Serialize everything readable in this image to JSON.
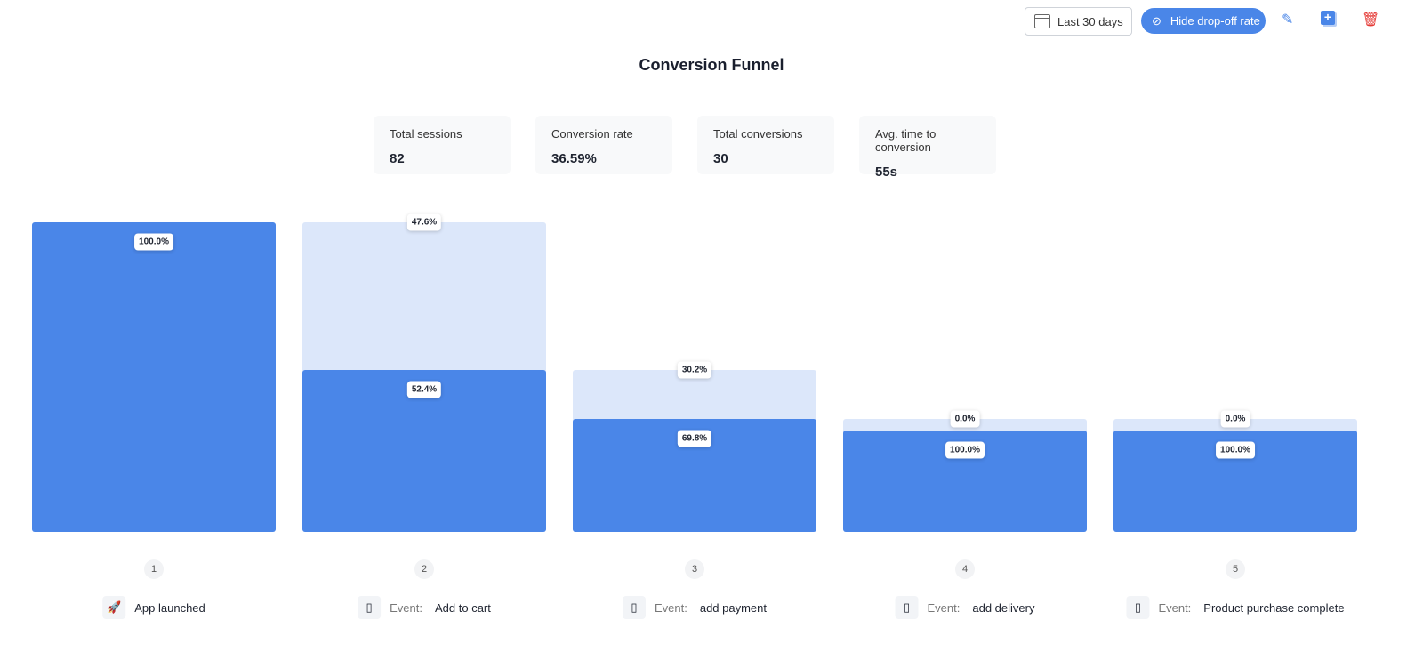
{
  "toolbar": {
    "date_range": "Last 30 days",
    "hide_dropoff": "Hide drop-off rate"
  },
  "title": "Conversion Funnel",
  "stats": [
    {
      "label": "Total sessions",
      "value": "82"
    },
    {
      "label": "Conversion rate",
      "value": "36.59%"
    },
    {
      "label": "Total conversions",
      "value": "30"
    },
    {
      "label": "Avg. time to conversion",
      "value": "55s"
    }
  ],
  "colors": {
    "conversion": "#4a86e8",
    "dropoff": "#dce7fa",
    "accent": "#4a86e8",
    "delete": "#e53935"
  },
  "chart_data": {
    "type": "bar",
    "categories": [
      "1",
      "2",
      "3",
      "4",
      "5"
    ],
    "steps": [
      {
        "number": "1",
        "prefix": "",
        "name": "App launched",
        "icon": "rocket-icon",
        "conversion_pct": "100.0%",
        "dropoff_pct": ""
      },
      {
        "number": "2",
        "prefix": "Event:",
        "name": "Add to cart",
        "icon": "phone-icon",
        "conversion_pct": "52.4%",
        "dropoff_pct": "47.6%"
      },
      {
        "number": "3",
        "prefix": "Event:",
        "name": "add payment",
        "icon": "phone-icon",
        "conversion_pct": "69.8%",
        "dropoff_pct": "30.2%"
      },
      {
        "number": "4",
        "prefix": "Event:",
        "name": "add delivery",
        "icon": "phone-icon",
        "conversion_pct": "100.0%",
        "dropoff_pct": "0.0%"
      },
      {
        "number": "5",
        "prefix": "Event:",
        "name": "Product purchase complete",
        "icon": "phone-icon",
        "conversion_pct": "100.0%",
        "dropoff_pct": "0.0%"
      }
    ],
    "sessions": [
      82,
      43,
      30,
      30,
      30
    ]
  }
}
